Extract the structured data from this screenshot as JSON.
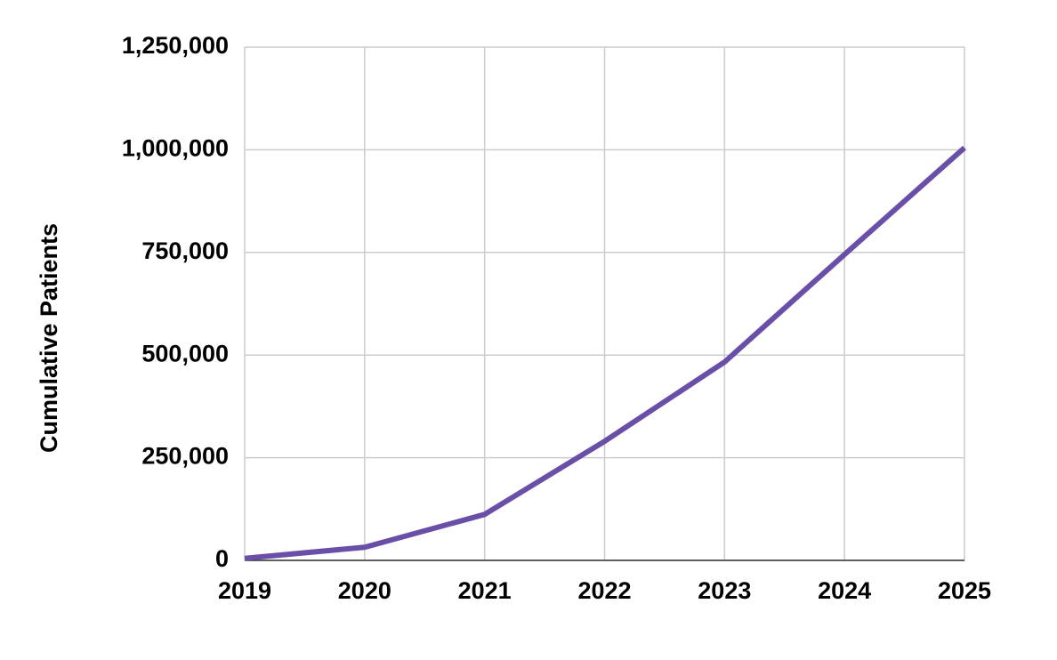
{
  "chart_data": {
    "type": "line",
    "y_label": "Cumulative Patients",
    "x": [
      2019,
      2020,
      2021,
      2022,
      2023,
      2024,
      2025
    ],
    "series": [
      {
        "name": "Cumulative Patients",
        "color": "#6a4fa8",
        "values": [
          5000,
          32000,
          112000,
          290000,
          483000,
          745000,
          1005000
        ]
      }
    ],
    "xlim": [
      2019,
      2025
    ],
    "xticks": [
      2019,
      2020,
      2021,
      2022,
      2023,
      2024,
      2025
    ],
    "ylim": [
      0,
      1250000
    ],
    "yticks": [
      0,
      {
        "value": 250000,
        "label": "250,000"
      },
      {
        "value": 500000,
        "label": "500,000"
      },
      {
        "value": 750000,
        "label": "750,000"
      },
      {
        "value": 1000000,
        "label": "1,000,000"
      },
      {
        "value": 1250000,
        "label": "1,250,000"
      }
    ],
    "grid": true
  }
}
